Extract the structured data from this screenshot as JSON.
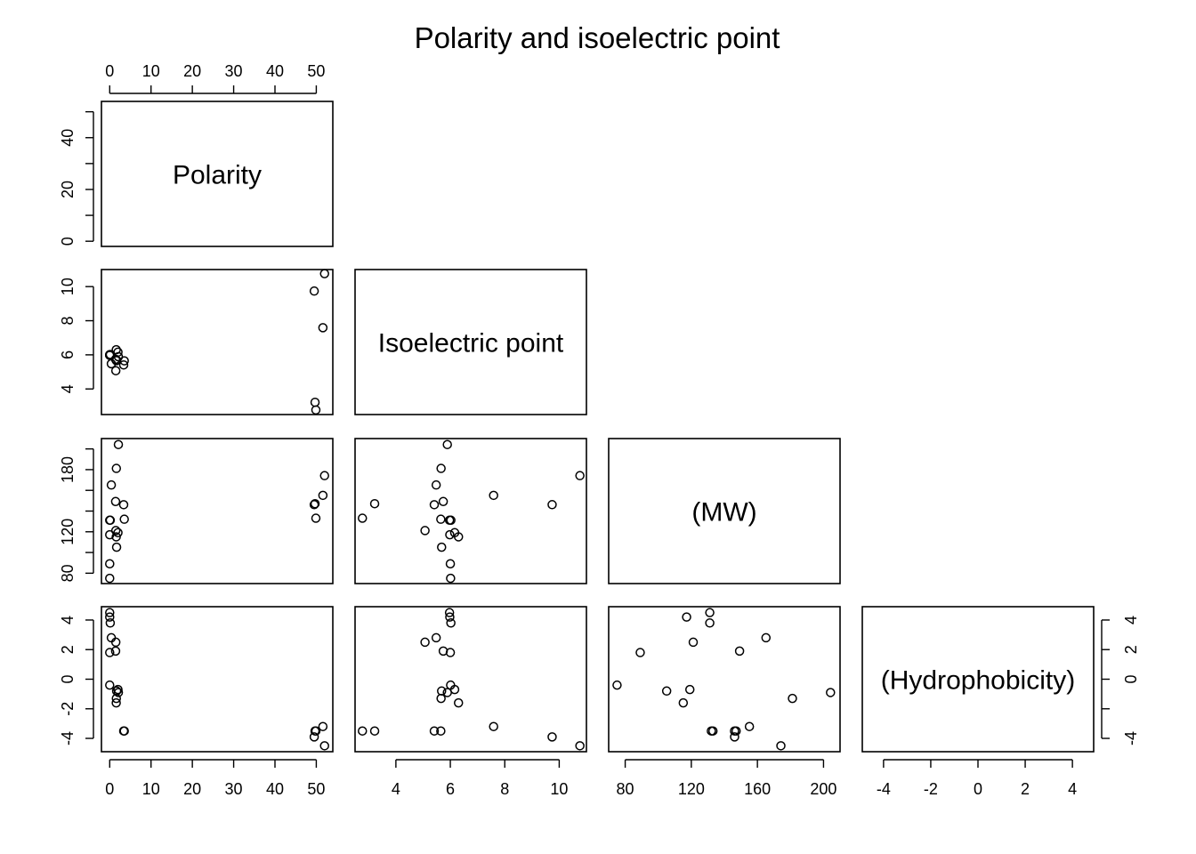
{
  "chart_data": {
    "type": "scatter",
    "title": "Polarity and isoelectric point",
    "variables": [
      "Polarity",
      "Isoelectric point",
      "(MW)",
      "(Hydrophobicity)"
    ],
    "layout": "lower-triangle scatterplot matrix",
    "ranges": {
      "Polarity": [
        -2,
        54
      ],
      "Isoelectric point": [
        2.5,
        11
      ],
      "(MW)": [
        70,
        210
      ],
      "(Hydrophobicity)": [
        -4.9,
        4.9
      ]
    },
    "ticks": {
      "Polarity": [
        0,
        10,
        20,
        30,
        40,
        50
      ],
      "Polarity_diag": [
        0,
        20,
        40
      ],
      "Isoelectric point": [
        4,
        6,
        8,
        10
      ],
      "(MW)": [
        80,
        120,
        160,
        200
      ],
      "(Hydrophobicity)": [
        -4,
        -2,
        0,
        2,
        4
      ],
      "(Hydrophobicity)_labels": [
        -4,
        0,
        2,
        4
      ]
    },
    "points": [
      {
        "Polarity": 0.0,
        "Isoelectric point": 6.01,
        "(MW)": 75.07,
        "(Hydrophobicity)": -0.4
      },
      {
        "Polarity": 0.0,
        "Isoelectric point": 6.0,
        "(MW)": 89.09,
        "(Hydrophobicity)": 1.8
      },
      {
        "Polarity": 0.0,
        "Isoelectric point": 5.97,
        "(MW)": 131.17,
        "(Hydrophobicity)": 4.5
      },
      {
        "Polarity": 0.0,
        "Isoelectric point": 5.98,
        "(MW)": 117.15,
        "(Hydrophobicity)": 4.2
      },
      {
        "Polarity": 0.13,
        "Isoelectric point": 6.02,
        "(MW)": 131.17,
        "(Hydrophobicity)": 3.8
      },
      {
        "Polarity": 0.39,
        "Isoelectric point": 5.48,
        "(MW)": 165.19,
        "(Hydrophobicity)": 2.8
      },
      {
        "Polarity": 1.48,
        "Isoelectric point": 5.07,
        "(MW)": 121.16,
        "(Hydrophobicity)": 2.5
      },
      {
        "Polarity": 1.43,
        "Isoelectric point": 5.74,
        "(MW)": 149.21,
        "(Hydrophobicity)": 1.9
      },
      {
        "Polarity": 1.67,
        "Isoelectric point": 5.68,
        "(MW)": 105.09,
        "(Hydrophobicity)": -0.8
      },
      {
        "Polarity": 1.58,
        "Isoelectric point": 6.3,
        "(MW)": 115.13,
        "(Hydrophobicity)": -1.6
      },
      {
        "Polarity": 1.61,
        "Isoelectric point": 5.66,
        "(MW)": 181.19,
        "(Hydrophobicity)": -1.3
      },
      {
        "Polarity": 2.1,
        "Isoelectric point": 5.89,
        "(MW)": 204.23,
        "(Hydrophobicity)": -0.9
      },
      {
        "Polarity": 2.0,
        "Isoelectric point": 6.16,
        "(MW)": 119.12,
        "(Hydrophobicity)": -0.7
      },
      {
        "Polarity": 3.38,
        "Isoelectric point": 5.41,
        "(MW)": 146.15,
        "(Hydrophobicity)": -3.5
      },
      {
        "Polarity": 3.53,
        "Isoelectric point": 5.65,
        "(MW)": 132.12,
        "(Hydrophobicity)": -3.5
      },
      {
        "Polarity": 49.7,
        "Isoelectric point": 3.22,
        "(MW)": 147.13,
        "(Hydrophobicity)": -3.5
      },
      {
        "Polarity": 49.9,
        "Isoelectric point": 2.77,
        "(MW)": 133.1,
        "(Hydrophobicity)": -3.5
      },
      {
        "Polarity": 51.6,
        "Isoelectric point": 7.59,
        "(MW)": 155.16,
        "(Hydrophobicity)": -3.2
      },
      {
        "Polarity": 49.5,
        "Isoelectric point": 9.74,
        "(MW)": 146.19,
        "(Hydrophobicity)": -3.9
      },
      {
        "Polarity": 52.0,
        "Isoelectric point": 10.76,
        "(MW)": 174.2,
        "(Hydrophobicity)": -4.5
      }
    ]
  }
}
